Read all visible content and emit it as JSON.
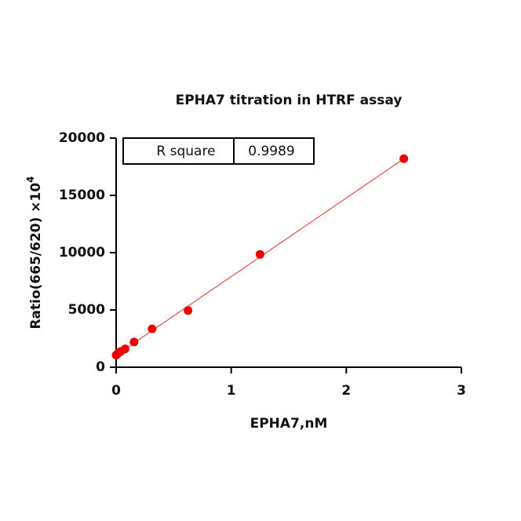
{
  "chart_data": {
    "type": "scatter",
    "title": "EPHA7 titration in HTRF assay",
    "xlabel": "EPHA7,nM",
    "ylabel": "Ratio(665/620) ×10",
    "ylabel_sup": "4",
    "x": [
      0,
      0.00977,
      0.0195,
      0.039,
      0.078,
      0.156,
      0.3125,
      0.625,
      1.25,
      2.5
    ],
    "series": [
      {
        "color": "#ee0000",
        "values": [
          1050,
          1150,
          1250,
          1370,
          1600,
          2200,
          3350,
          4950,
          9850,
          18200
        ]
      }
    ],
    "fit": {
      "color": "#e03030",
      "x": [
        0,
        2.5
      ],
      "values": [
        1050,
        18200
      ]
    },
    "stats_table": {
      "label": "R square",
      "value": 0.9989
    },
    "xlim": [
      0,
      3
    ],
    "xticks": [
      0,
      1,
      2,
      3
    ],
    "ylim": [
      0,
      20000
    ],
    "yticks": [
      0,
      5000,
      10000,
      15000,
      20000
    ],
    "grid": false
  }
}
